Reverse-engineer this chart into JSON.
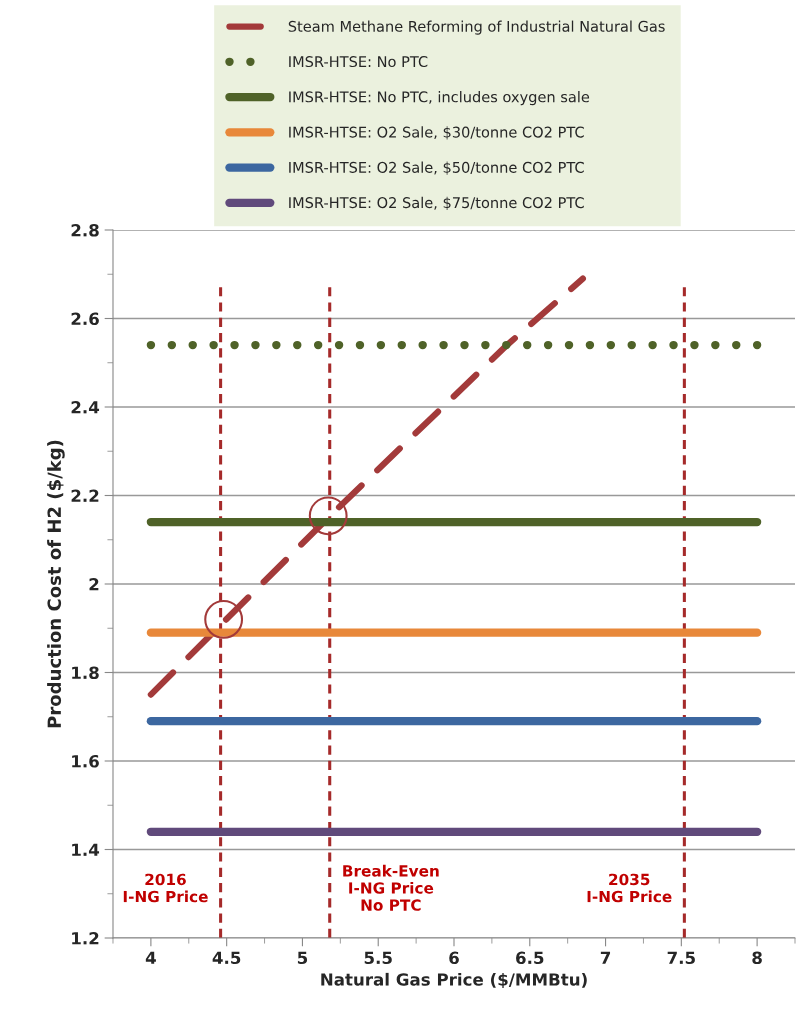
{
  "chart_data": {
    "type": "line",
    "xlabel": "Natural Gas Price ($/MMBtu)",
    "ylabel": "Production Cost of H2 ($/kg)",
    "xlim": [
      3.75,
      8.25
    ],
    "ylim": [
      1.2,
      2.8
    ],
    "xticks": [
      {
        "value": 3.75,
        "label": null
      },
      4,
      {
        "value": 4.25,
        "label": null
      },
      4.5,
      {
        "value": 4.75,
        "label": null
      },
      5,
      {
        "value": 5.25,
        "label": null
      },
      5.5,
      {
        "value": 5.75,
        "label": null
      },
      6,
      {
        "value": 6.25,
        "label": null
      },
      6.5,
      {
        "value": 6.75,
        "label": null
      },
      7,
      {
        "value": 7.25,
        "label": null
      },
      7.5,
      {
        "value": 7.75,
        "label": null
      },
      8,
      {
        "value": 8.25,
        "label": null
      }
    ],
    "yticks": [
      1.2,
      {
        "value": 1.3,
        "label": null
      },
      1.4,
      {
        "value": 1.5,
        "label": null
      },
      1.6,
      {
        "value": 1.7,
        "label": null
      },
      1.8,
      {
        "value": 1.9,
        "label": null
      },
      2,
      {
        "value": 2.1,
        "label": null
      },
      2.2,
      {
        "value": 2.3,
        "label": null
      },
      2.4,
      {
        "value": 2.5,
        "label": null
      },
      2.6,
      {
        "value": 2.7,
        "label": null
      },
      2.8
    ],
    "grid": "y",
    "legend": "top",
    "series": [
      {
        "name": "Steam Methane Reforming of Industrial Natural Gas",
        "color": "#a33a3a",
        "line_style": "dashed",
        "x": [
          4,
          5.17,
          6.35,
          6.85
        ],
        "values": [
          1.75,
          2.15,
          2.54,
          2.69
        ]
      },
      {
        "name": "IMSR-HTSE: No PTC",
        "color": "#4f6228",
        "line_style": "dotted",
        "x": [
          4,
          8
        ],
        "values": [
          2.54,
          2.54
        ]
      },
      {
        "name": "IMSR-HTSE: No PTC, includes oxygen sale",
        "color": "#4f6228",
        "line_style": "solid",
        "x": [
          4,
          8
        ],
        "values": [
          2.14,
          2.14
        ]
      },
      {
        "name": "IMSR-HTSE: O2 Sale, $30/tonne CO2 PTC",
        "color": "#e8883a",
        "line_style": "solid",
        "x": [
          4,
          8
        ],
        "values": [
          1.89,
          1.89
        ]
      },
      {
        "name": "IMSR-HTSE: O2 Sale, $50/tonne CO2 PTC",
        "color": "#3c67a0",
        "line_style": "solid",
        "x": [
          4,
          8
        ],
        "values": [
          1.69,
          1.69
        ]
      },
      {
        "name": "IMSR-HTSE: O2 Sale, $75/tonne CO2 PTC",
        "color": "#604a7b",
        "line_style": "solid",
        "x": [
          4,
          8
        ],
        "values": [
          1.44,
          1.44
        ]
      },
      {
        "type": "scatter",
        "marker": "circle",
        "color": "#a33a3a",
        "x": [
          4.48,
          5.17
        ],
        "values": [
          1.92,
          2.154
        ]
      }
    ],
    "ref_lines": [
      {
        "axis": "x",
        "value": 4.46,
        "label": "2016\nI-NG Price",
        "color": "#a52a2a",
        "line_style": "dashed"
      },
      {
        "axis": "x",
        "value": 5.18,
        "label": "Break-Even\nI-NG Price\nNo PTC",
        "color": "#a52a2a",
        "line_style": "dashed"
      },
      {
        "axis": "x",
        "value": 7.52,
        "label": "2035\nI-NG Price",
        "color": "#a52a2a",
        "line_style": "dashed"
      }
    ]
  }
}
